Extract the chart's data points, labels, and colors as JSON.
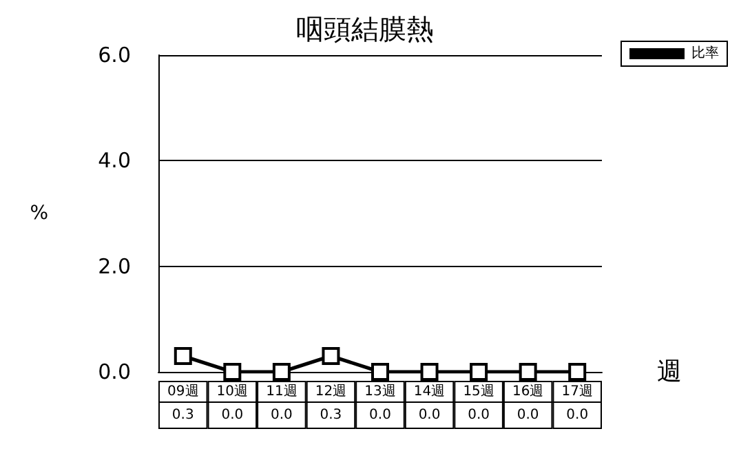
{
  "chart_data": {
    "type": "line",
    "title": "咽頭結膜熱",
    "ylabel": "%",
    "xlabel": "週",
    "categories": [
      "09週",
      "10週",
      "11週",
      "12週",
      "13週",
      "14週",
      "15週",
      "16週",
      "17週"
    ],
    "series": [
      {
        "name": "比率",
        "color": "#000000",
        "values": [
          0.3,
          0.0,
          0.0,
          0.3,
          0.0,
          0.0,
          0.0,
          0.0,
          0.0
        ],
        "value_labels": [
          "0.3",
          "0.0",
          "0.0",
          "0.3",
          "0.0",
          "0.0",
          "0.0",
          "0.0",
          "0.0"
        ]
      }
    ],
    "ylim": [
      0,
      6
    ],
    "yticks": [
      {
        "value": 0,
        "label": "0.0"
      },
      {
        "value": 2,
        "label": "2.0"
      },
      {
        "value": 4,
        "label": "4.0"
      },
      {
        "value": 6,
        "label": "6.0"
      }
    ],
    "grid": "y",
    "legend": "top right",
    "marker": "square",
    "line_style": "solid"
  }
}
